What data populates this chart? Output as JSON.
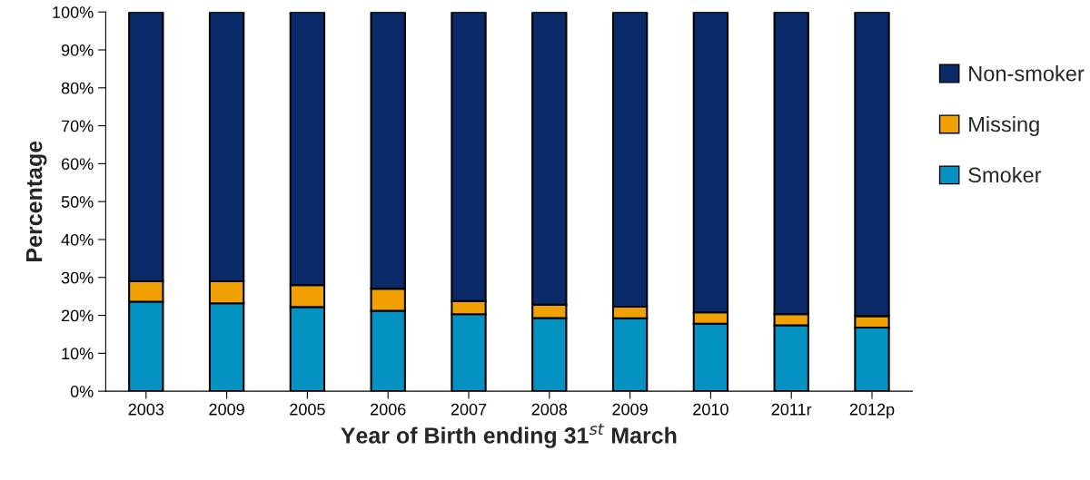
{
  "chart_data": {
    "type": "bar",
    "stacked": true,
    "xlabel": "Year of Birth ending 31$^{st}$ March",
    "ylabel": "Percentage",
    "categories": [
      "2003",
      "2009",
      "2005",
      "2006",
      "2007",
      "2008",
      "2009",
      "2010",
      "2011r",
      "2012p"
    ],
    "series": [
      {
        "name": "Smoker",
        "color": "#0492c2",
        "values": [
          23.6,
          23.2,
          22.2,
          21.2,
          20.3,
          19.3,
          19.2,
          17.8,
          17.4,
          16.8
        ]
      },
      {
        "name": "Missing",
        "color": "#f0a000",
        "values": [
          5.4,
          5.8,
          5.8,
          5.8,
          3.5,
          3.5,
          3.1,
          3.0,
          2.9,
          3.0
        ]
      },
      {
        "name": "Non-smoker",
        "color": "#0a2a6a",
        "values": [
          71.0,
          71.0,
          72.0,
          73.0,
          76.2,
          77.2,
          77.7,
          79.2,
          79.7,
          80.2
        ]
      }
    ],
    "ylim": [
      0,
      100
    ],
    "yticks": [
      {
        "value": 0,
        "label": "0%"
      },
      {
        "value": 10,
        "label": "10%"
      },
      {
        "value": 20,
        "label": "20%"
      },
      {
        "value": 30,
        "label": "30%"
      },
      {
        "value": 40,
        "label": "40%"
      },
      {
        "value": 50,
        "label": "50%"
      },
      {
        "value": 60,
        "label": "60%"
      },
      {
        "value": 70,
        "label": "70%"
      },
      {
        "value": 80,
        "label": "80%"
      },
      {
        "value": 90,
        "label": "90%"
      },
      {
        "value": 100,
        "label": "100%"
      }
    ],
    "legend": "right",
    "grid": false
  }
}
